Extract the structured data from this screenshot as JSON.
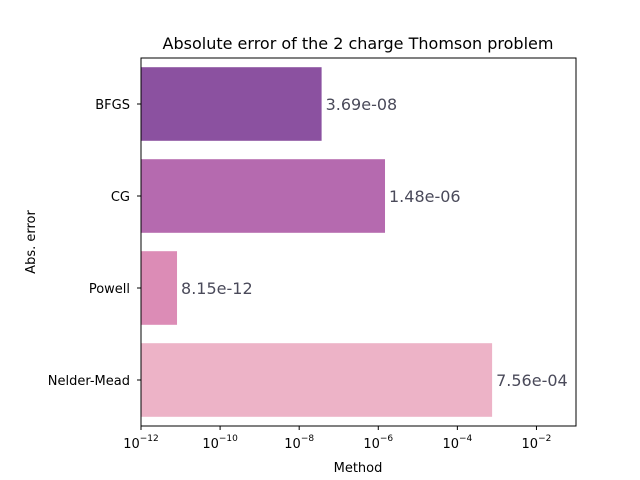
{
  "chart_data": {
    "type": "bar",
    "orientation": "horizontal",
    "title": "Absolute error of the 2 charge Thomson problem",
    "xlabel": "Method",
    "ylabel": "Abs. error",
    "x_scale": "log",
    "xlim": [
      1e-12,
      0.1
    ],
    "x_ticks": [
      {
        "base": "10",
        "exp": "−12",
        "value": 1e-12
      },
      {
        "base": "10",
        "exp": "−10",
        "value": 1e-10
      },
      {
        "base": "10",
        "exp": "−8",
        "value": 1e-08
      },
      {
        "base": "10",
        "exp": "−6",
        "value": 1e-06
      },
      {
        "base": "10",
        "exp": "−4",
        "value": 0.0001
      },
      {
        "base": "10",
        "exp": "−2",
        "value": 0.01
      }
    ],
    "categories": [
      "BFGS",
      "CG",
      "Powell",
      "Nelder-Mead"
    ],
    "values": [
      3.69e-08,
      1.48e-06,
      8.15e-12,
      0.000756
    ],
    "value_labels": [
      "3.69e-08",
      "1.48e-06",
      "8.15e-12",
      "7.56e-04"
    ],
    "colors": [
      "#8b51a0",
      "#b56aaf",
      "#dc8cb6",
      "#edb3c7"
    ],
    "grid": false,
    "legend": "none"
  }
}
